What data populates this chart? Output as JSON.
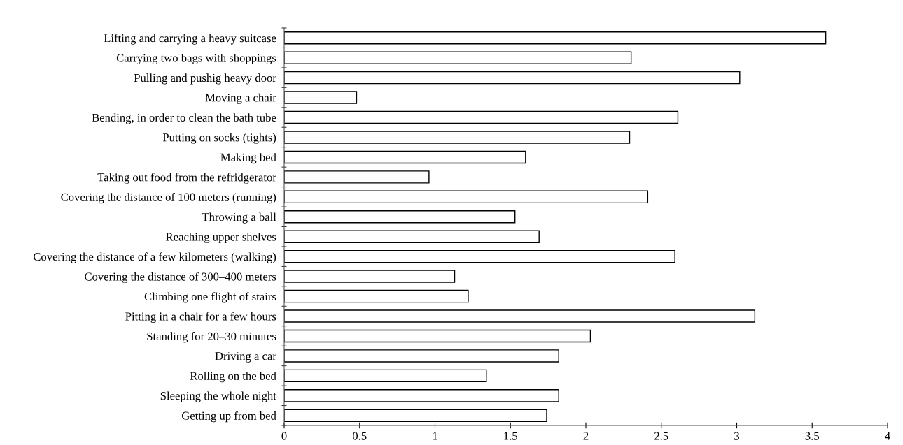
{
  "chart_data": {
    "type": "bar",
    "orientation": "horizontal",
    "categories": [
      "Lifting and carrying a heavy suitcase",
      "Carrying two bags with shoppings",
      "Pulling and pushig heavy door",
      "Moving a chair",
      "Bending, in order to clean the bath tube",
      "Putting on socks (tights)",
      "Making bed",
      "Taking out food from the refridgerator",
      "Covering the distance of 100 meters (running)",
      "Throwing a ball",
      "Reaching upper shelves",
      "Covering the distance of a few kilometers (walking)",
      "Covering the distance of 300–400 meters",
      "Climbing one flight of stairs",
      "Pitting in a chair for a few hours",
      "Standing for 20–30 minutes",
      "Driving a car",
      "Rolling on the bed",
      "Sleeping the whole night",
      "Getting up from bed"
    ],
    "values": [
      3.59,
      2.3,
      3.02,
      0.48,
      2.61,
      2.29,
      1.6,
      0.96,
      2.41,
      1.53,
      1.69,
      2.59,
      1.13,
      1.22,
      3.12,
      2.03,
      1.82,
      1.34,
      1.82,
      1.74
    ],
    "color": "#ffffff",
    "xlim": [
      0,
      4
    ],
    "xticks": [
      0,
      0.5,
      1,
      1.5,
      2,
      2.5,
      3,
      3.5,
      4
    ],
    "grid": false
  }
}
